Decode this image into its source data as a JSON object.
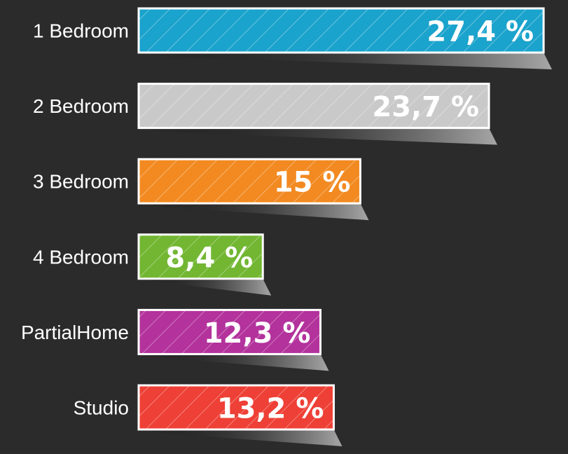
{
  "chart_data": {
    "type": "bar",
    "orientation": "horizontal",
    "categories": [
      "1 Bedroom",
      "2 Bedroom",
      "3 Bedroom",
      "4 Bedroom",
      "PartialHome",
      "Studio"
    ],
    "values": [
      27.4,
      23.7,
      15,
      8.4,
      12.3,
      13.2
    ],
    "value_labels": [
      "27,4 %",
      "23,7 %",
      "15 %",
      "8,4 %",
      "12,3 %",
      "13,2 %"
    ],
    "colors": [
      "#1aa3cc",
      "#c9c9c9",
      "#f28a21",
      "#72b632",
      "#b3329c",
      "#ee4036"
    ],
    "title": "",
    "xlabel": "",
    "ylabel": "",
    "grid": false,
    "legend": "none"
  }
}
